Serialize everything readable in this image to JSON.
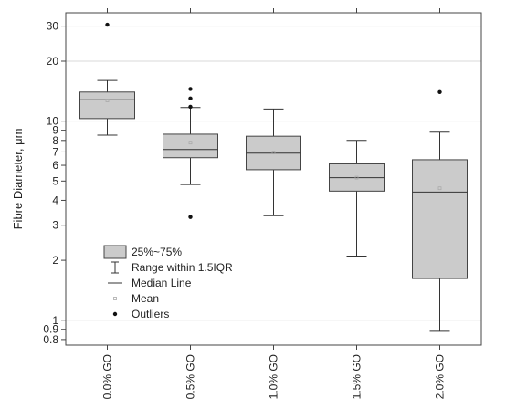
{
  "chart_data": {
    "type": "box",
    "ylabel": "Fibre Diameter, μm",
    "yscale": "log",
    "ylim": [
      0.75,
      35
    ],
    "yticks": [
      {
        "value": 0.8,
        "label": "0.8"
      },
      {
        "value": 0.9,
        "label": "0.9"
      },
      {
        "value": 1,
        "label": "1"
      },
      {
        "value": 2,
        "label": "2"
      },
      {
        "value": 3,
        "label": "3"
      },
      {
        "value": 4,
        "label": "4"
      },
      {
        "value": 5,
        "label": "5"
      },
      {
        "value": 6,
        "label": "6"
      },
      {
        "value": 7,
        "label": "7"
      },
      {
        "value": 8,
        "label": "8"
      },
      {
        "value": 9,
        "label": "9"
      },
      {
        "value": 10,
        "label": "10"
      },
      {
        "value": 20,
        "label": "20"
      },
      {
        "value": 30,
        "label": "30"
      }
    ],
    "gridlines": [
      1,
      10,
      20,
      30
    ],
    "categories": [
      "0.0% GO",
      "0.5% GO",
      "1.0% GO",
      "1.5% GO",
      "2.0% GO"
    ],
    "boxes": [
      {
        "category": "0.0% GO",
        "whisker_low": 8.5,
        "q1": 10.3,
        "median": 12.8,
        "q3": 14.0,
        "whisker_high": 16.0,
        "mean": 12.7,
        "outliers": [
          30.5
        ]
      },
      {
        "category": "0.5% GO",
        "whisker_low": 4.8,
        "q1": 6.55,
        "median": 7.2,
        "q3": 8.6,
        "whisker_high": 11.7,
        "mean": 7.8,
        "outliers": [
          3.3,
          11.8,
          13.0,
          14.5
        ]
      },
      {
        "category": "1.0% GO",
        "whisker_low": 3.35,
        "q1": 5.7,
        "median": 6.9,
        "q3": 8.4,
        "whisker_high": 11.5,
        "mean": 6.95,
        "outliers": []
      },
      {
        "category": "1.5% GO",
        "whisker_low": 2.1,
        "q1": 4.45,
        "median": 5.2,
        "q3": 6.1,
        "whisker_high": 8.0,
        "mean": 5.2,
        "outliers": []
      },
      {
        "category": "2.0% GO",
        "whisker_low": 0.88,
        "q1": 1.62,
        "median": 4.4,
        "q3": 6.4,
        "whisker_high": 8.8,
        "mean": 4.6,
        "outliers": [
          14.0
        ]
      }
    ],
    "legend": {
      "placement": "bottom-left",
      "entries": [
        {
          "symbol": "box",
          "label": "25%~75%"
        },
        {
          "symbol": "whisker",
          "label": "Range within 1.5IQR"
        },
        {
          "symbol": "line",
          "label": "Median Line"
        },
        {
          "symbol": "square",
          "label": "Mean"
        },
        {
          "symbol": "dot",
          "label": "Outliers"
        }
      ]
    },
    "colors": {
      "box_fill": "#cbcbcb",
      "box_stroke": "#444444",
      "line": "#333333",
      "grid": "#d9d9d9",
      "mean": "#aaaaaa",
      "outlier": "#111111"
    }
  }
}
